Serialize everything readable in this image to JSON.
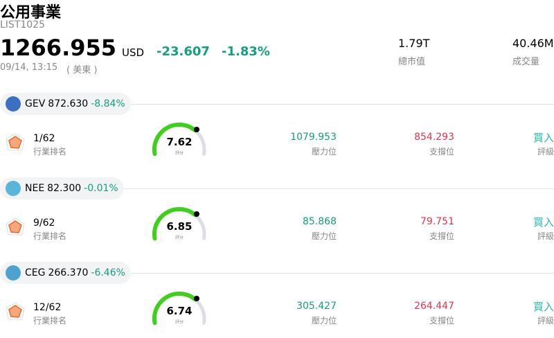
{
  "header": {
    "title": "公用事業",
    "code": "LIST1025",
    "price": "1266.955",
    "currency": "USD",
    "change": "-23.607",
    "change_pct": "-1.83%",
    "time": "09/14, 13:15",
    "timezone": "( 美東 )",
    "stats": [
      {
        "value": "1.79T",
        "label": "總市值"
      },
      {
        "value": "40.46M",
        "label": "成交量"
      }
    ]
  },
  "stocks": [
    {
      "ticker": "GEV",
      "price": "872.630",
      "change": "-8.84%",
      "rank": "1/62",
      "rank_label": "行業排名",
      "score": "7.62",
      "score_label": "評分",
      "resistance": "1079.953",
      "resistance_label": "壓力位",
      "support": "854.293",
      "support_label": "支撐位",
      "rating": "買入",
      "rating_label": "評級"
    },
    {
      "ticker": "NEE",
      "price": "82.300",
      "change": "-0.01%",
      "rank": "9/62",
      "rank_label": "行業排名",
      "score": "6.85",
      "score_label": "評分",
      "resistance": "85.868",
      "resistance_label": "壓力位",
      "support": "79.751",
      "support_label": "支撐位",
      "rating": "買入",
      "rating_label": "評級"
    },
    {
      "ticker": "CEG",
      "price": "266.370",
      "change": "-6.46%",
      "rank": "12/62",
      "rank_label": "行業排名",
      "score": "6.74",
      "score_label": "評分",
      "resistance": "305.427",
      "resistance_label": "壓力位",
      "support": "264.447",
      "support_label": "支撐位",
      "rating": "買入",
      "rating_label": "評級"
    }
  ]
}
